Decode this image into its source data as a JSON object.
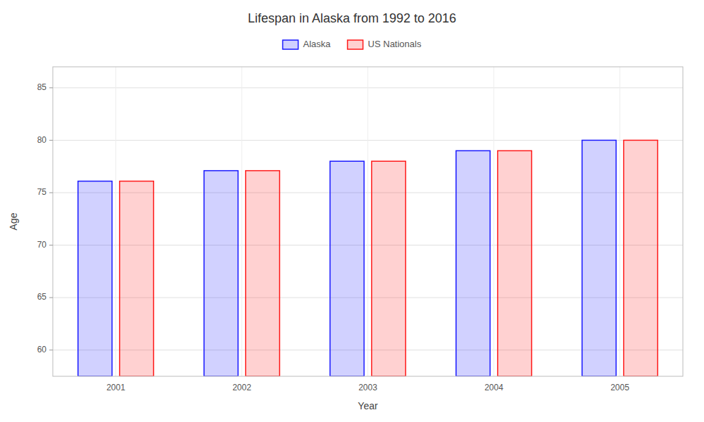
{
  "chart_data": {
    "type": "bar",
    "title": "Lifespan in Alaska from 1992 to 2016",
    "x_label": "Year",
    "y_label": "Age",
    "categories": [
      "2001",
      "2002",
      "2003",
      "2004",
      "2005"
    ],
    "series": [
      {
        "name": "Alaska",
        "color": "#1a1aff",
        "values": [
          76.1,
          77.1,
          78.0,
          79.0,
          80.0
        ]
      },
      {
        "name": "US Nationals",
        "color": "#ff1a1a",
        "values": [
          76.1,
          77.1,
          78.0,
          79.0,
          80.0
        ]
      }
    ],
    "ylim": [
      57.5,
      87.0
    ],
    "yticks": [
      60,
      65,
      70,
      75,
      80,
      85
    ],
    "grid": true,
    "legend": "top"
  }
}
